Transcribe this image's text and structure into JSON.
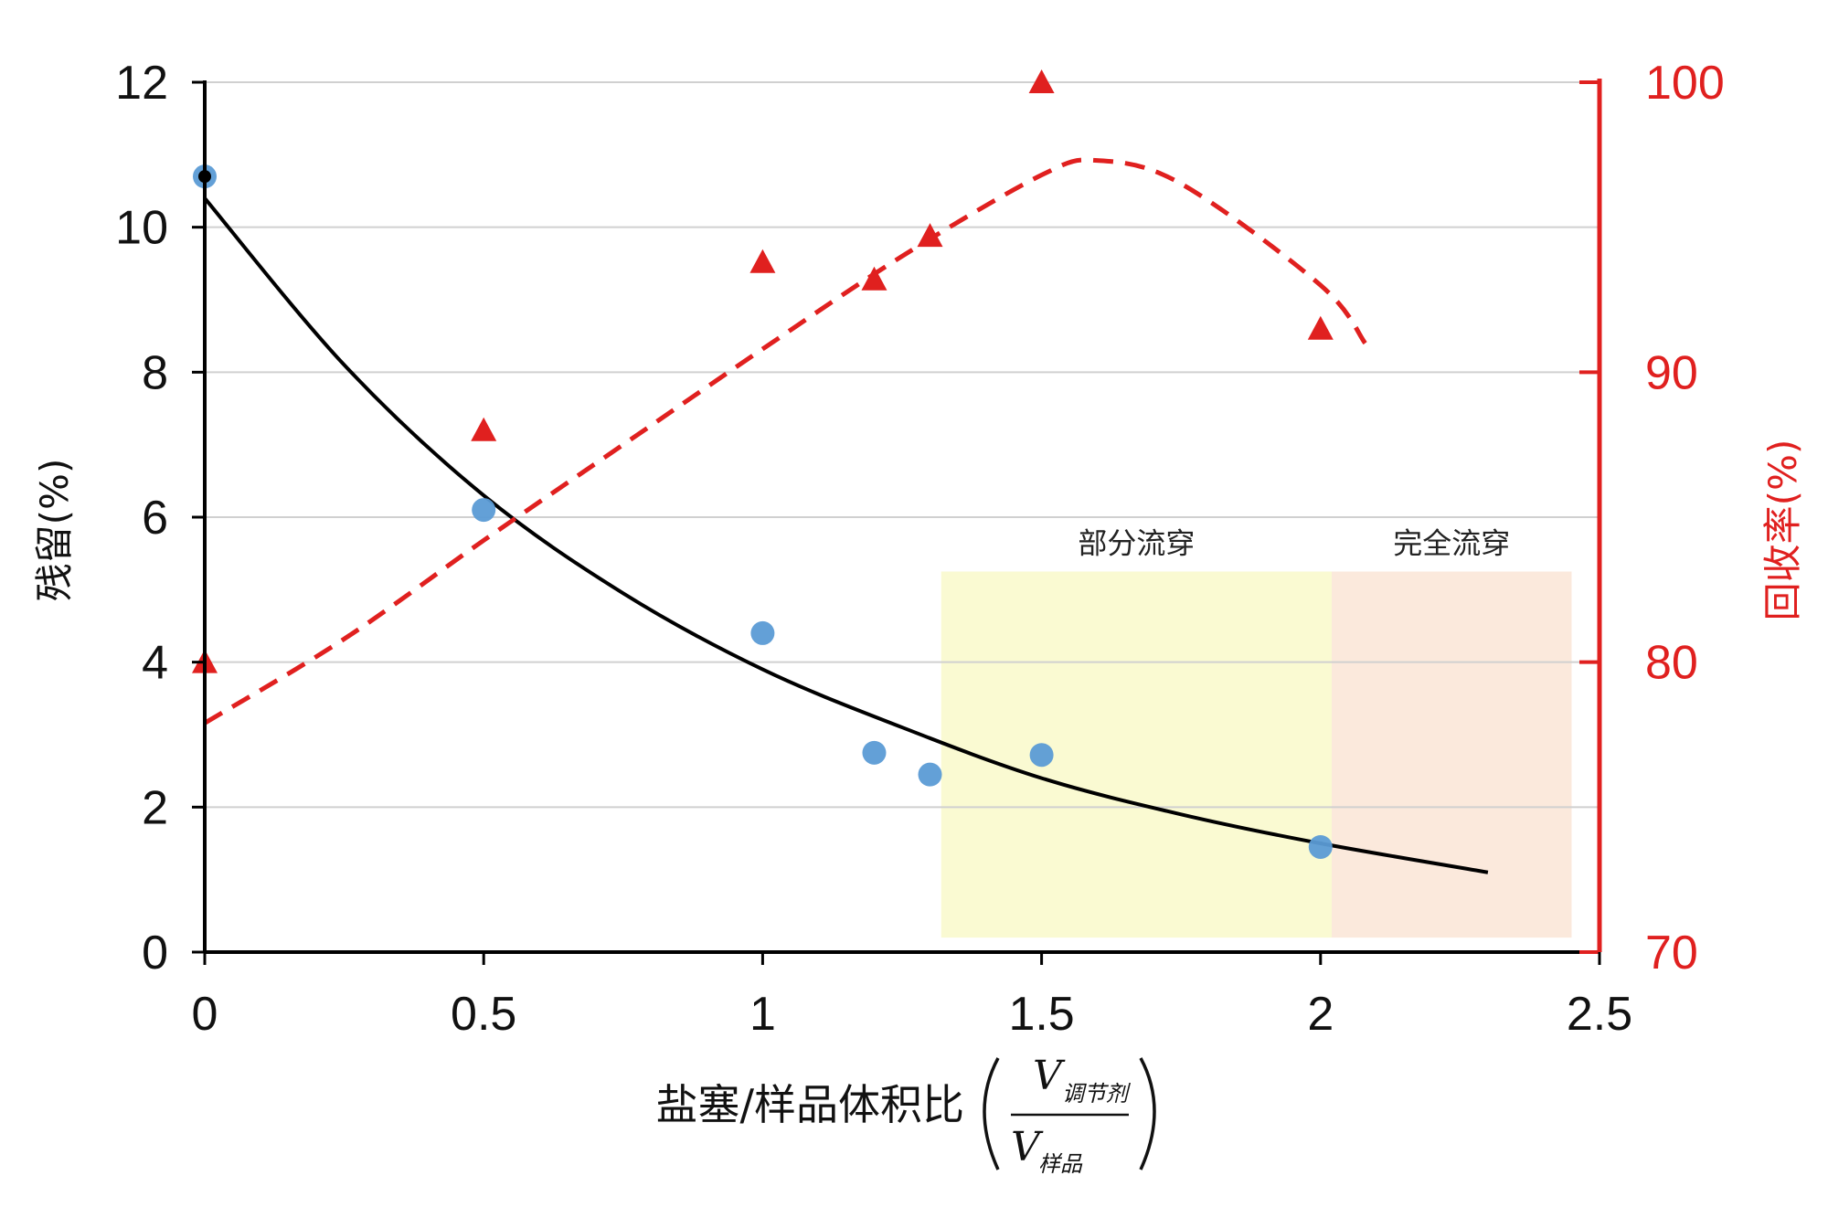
{
  "chart_data": {
    "type": "scatter",
    "xlabel": "盐塞/样品体积比",
    "xlabel_fraction": {
      "numerator_symbol": "V",
      "numerator_subscript": "调节剂",
      "denominator_symbol": "V",
      "denominator_subscript": "样品"
    },
    "ylabel_left": "残留(%)",
    "ylabel_right": "回收率(%)",
    "xlim": [
      0,
      2.5
    ],
    "ylim_left": [
      0,
      12
    ],
    "ylim_right": [
      70,
      100
    ],
    "x_ticks": [
      "0",
      "0.5",
      "1",
      "1.5",
      "2",
      "2.5"
    ],
    "left_ticks": [
      "0",
      "2",
      "4",
      "6",
      "8",
      "10",
      "12"
    ],
    "right_ticks": [
      "70",
      "80",
      "90",
      "100"
    ],
    "grid": true,
    "series": [
      {
        "axis": "left",
        "marker": "circle",
        "color": "#5b9bd5",
        "points": [
          [
            0,
            10.7
          ],
          [
            0.5,
            6.1
          ],
          [
            1.0,
            4.4
          ],
          [
            1.2,
            2.75
          ],
          [
            1.3,
            2.45
          ],
          [
            1.5,
            2.72
          ],
          [
            2.0,
            1.45
          ]
        ]
      },
      {
        "axis": "left",
        "line": "fit-solid",
        "color": "#000000",
        "points": [
          [
            0,
            10.4
          ],
          [
            0.25,
            8.1
          ],
          [
            0.5,
            6.3
          ],
          [
            0.75,
            4.95
          ],
          [
            1.0,
            3.9
          ],
          [
            1.25,
            3.1
          ],
          [
            1.5,
            2.4
          ],
          [
            1.75,
            1.9
          ],
          [
            2.0,
            1.5
          ],
          [
            2.3,
            1.1
          ]
        ]
      },
      {
        "axis": "right",
        "marker": "triangle",
        "color": "#e0201f",
        "points": [
          [
            0,
            80.0
          ],
          [
            0.5,
            88.0
          ],
          [
            1.0,
            93.8
          ],
          [
            1.2,
            93.2
          ],
          [
            1.3,
            94.7
          ],
          [
            1.5,
            100.0
          ],
          [
            2.0,
            91.5
          ]
        ]
      },
      {
        "axis": "right",
        "line": "fit-dashed",
        "color": "#e0201f",
        "points": [
          [
            0,
            77.9
          ],
          [
            0.25,
            80.8
          ],
          [
            0.5,
            84.2
          ],
          [
            0.75,
            87.5
          ],
          [
            1.0,
            90.8
          ],
          [
            1.25,
            94.0
          ],
          [
            1.5,
            96.8
          ],
          [
            1.6,
            97.3
          ],
          [
            1.75,
            96.5
          ],
          [
            2.0,
            93.0
          ],
          [
            2.08,
            91.0
          ]
        ]
      }
    ],
    "regions": [
      {
        "label": "部分流穿",
        "x_range": [
          1.32,
          2.02
        ],
        "color": "#fafad2"
      },
      {
        "label": "完全流穿",
        "x_range": [
          2.02,
          2.45
        ],
        "color": "#fbe9dc"
      }
    ],
    "annotations": [
      "部分流穿",
      "完全流穿"
    ]
  }
}
